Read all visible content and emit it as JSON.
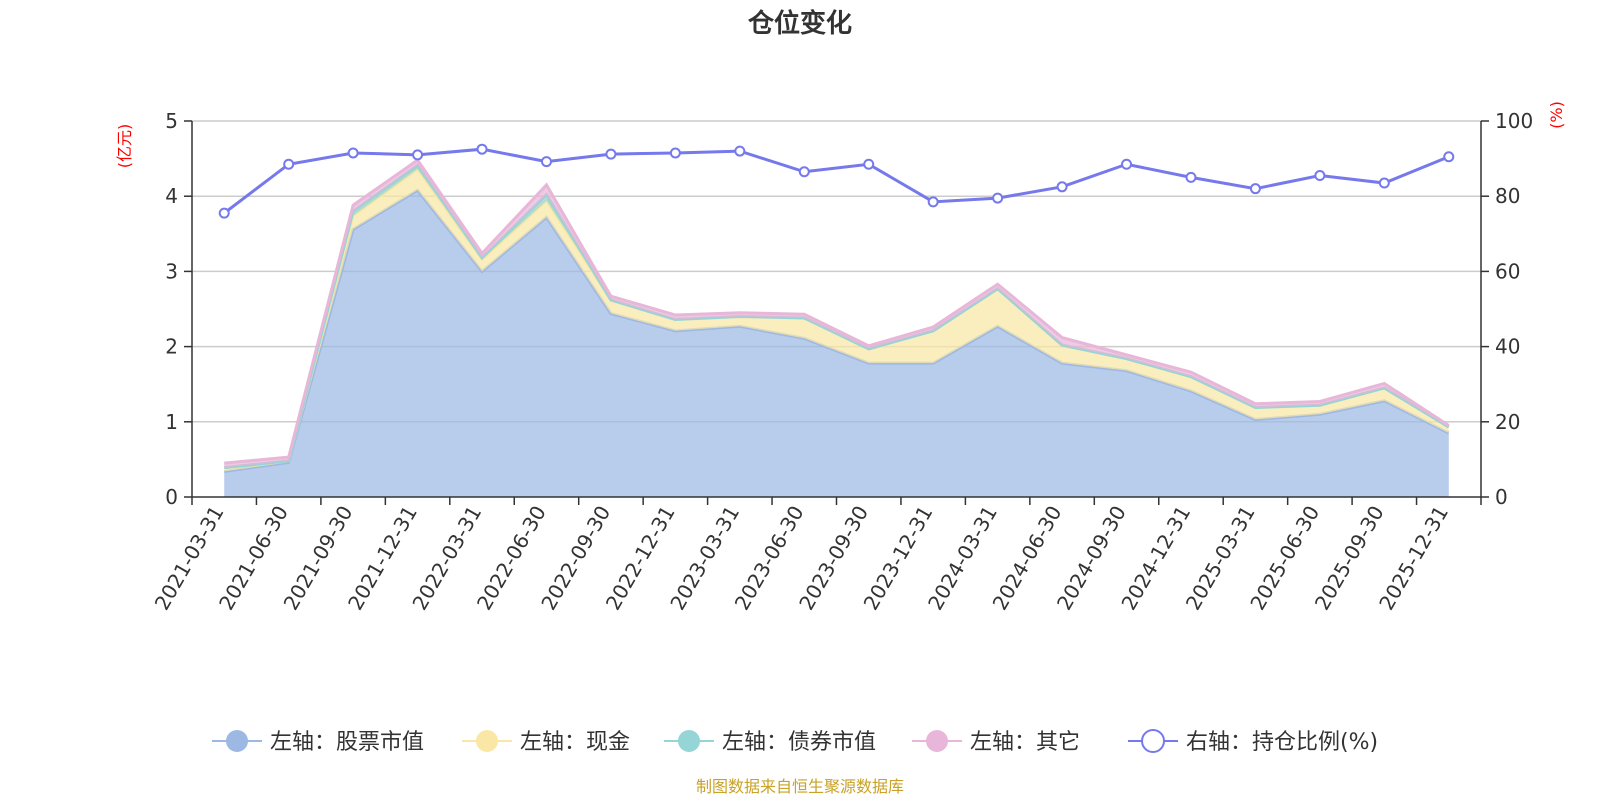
{
  "chart_data": {
    "type": "area",
    "title": "仓位变化",
    "categories": [
      "2021-03-31",
      "2021-06-30",
      "2021-09-30",
      "2021-12-31",
      "2022-03-31",
      "2022-06-30",
      "2022-09-30",
      "2022-12-31",
      "2023-03-31",
      "2023-06-30",
      "2023-09-30",
      "2023-12-31",
      "2024-03-31",
      "2024-06-30",
      "2024-09-30",
      "2024-12-31",
      "2025-03-31",
      "2025-06-30",
      "2025-09-30",
      "2025-12-31"
    ],
    "left_axis": {
      "unit": "(亿元)",
      "ylim": [
        0,
        5
      ],
      "ticks": [
        "0",
        "1",
        "2",
        "3",
        "4",
        "5"
      ]
    },
    "right_axis": {
      "unit": "(%)",
      "ylim": [
        0,
        100
      ],
      "ticks": [
        "0",
        "20",
        "40",
        "60",
        "80",
        "100"
      ]
    },
    "stacked_series": [
      {
        "name": "左轴：股票市值",
        "color": "#9db8e3",
        "values": [
          0.34,
          0.46,
          3.56,
          4.08,
          3.0,
          3.72,
          2.44,
          2.21,
          2.27,
          2.11,
          1.78,
          1.78,
          2.27,
          1.78,
          1.68,
          1.41,
          1.03,
          1.1,
          1.28,
          0.85
        ]
      },
      {
        "name": "左轴：现金",
        "color": "#fae7a5",
        "values": [
          0.05,
          0.02,
          0.18,
          0.28,
          0.16,
          0.22,
          0.18,
          0.15,
          0.13,
          0.27,
          0.19,
          0.43,
          0.5,
          0.24,
          0.16,
          0.19,
          0.16,
          0.12,
          0.17,
          0.08
        ]
      },
      {
        "name": "左轴：债券市值",
        "color": "#95d5d5",
        "values": [
          0.0,
          0.0,
          0.06,
          0.05,
          0.02,
          0.08,
          0.0,
          0.0,
          0.0,
          0.0,
          0.0,
          0.0,
          0.0,
          0.0,
          0.0,
          0.0,
          0.0,
          0.0,
          0.0,
          0.0
        ]
      },
      {
        "name": "左轴：其它",
        "color": "#e8b6d8",
        "values": [
          0.06,
          0.05,
          0.08,
          0.07,
          0.06,
          0.13,
          0.05,
          0.06,
          0.05,
          0.05,
          0.04,
          0.05,
          0.06,
          0.1,
          0.05,
          0.06,
          0.05,
          0.05,
          0.06,
          0.02
        ]
      }
    ],
    "line_series": {
      "name": "右轴：持仓比例(%)",
      "color": "#7579eb",
      "values": [
        75.5,
        88.5,
        91.5,
        91.0,
        92.5,
        89.2,
        91.2,
        91.5,
        92.0,
        86.5,
        88.5,
        78.5,
        79.5,
        82.5,
        88.5,
        85.0,
        82.0,
        85.5,
        83.5,
        90.5
      ]
    },
    "source": "制图数据来自恒生聚源数据库"
  }
}
